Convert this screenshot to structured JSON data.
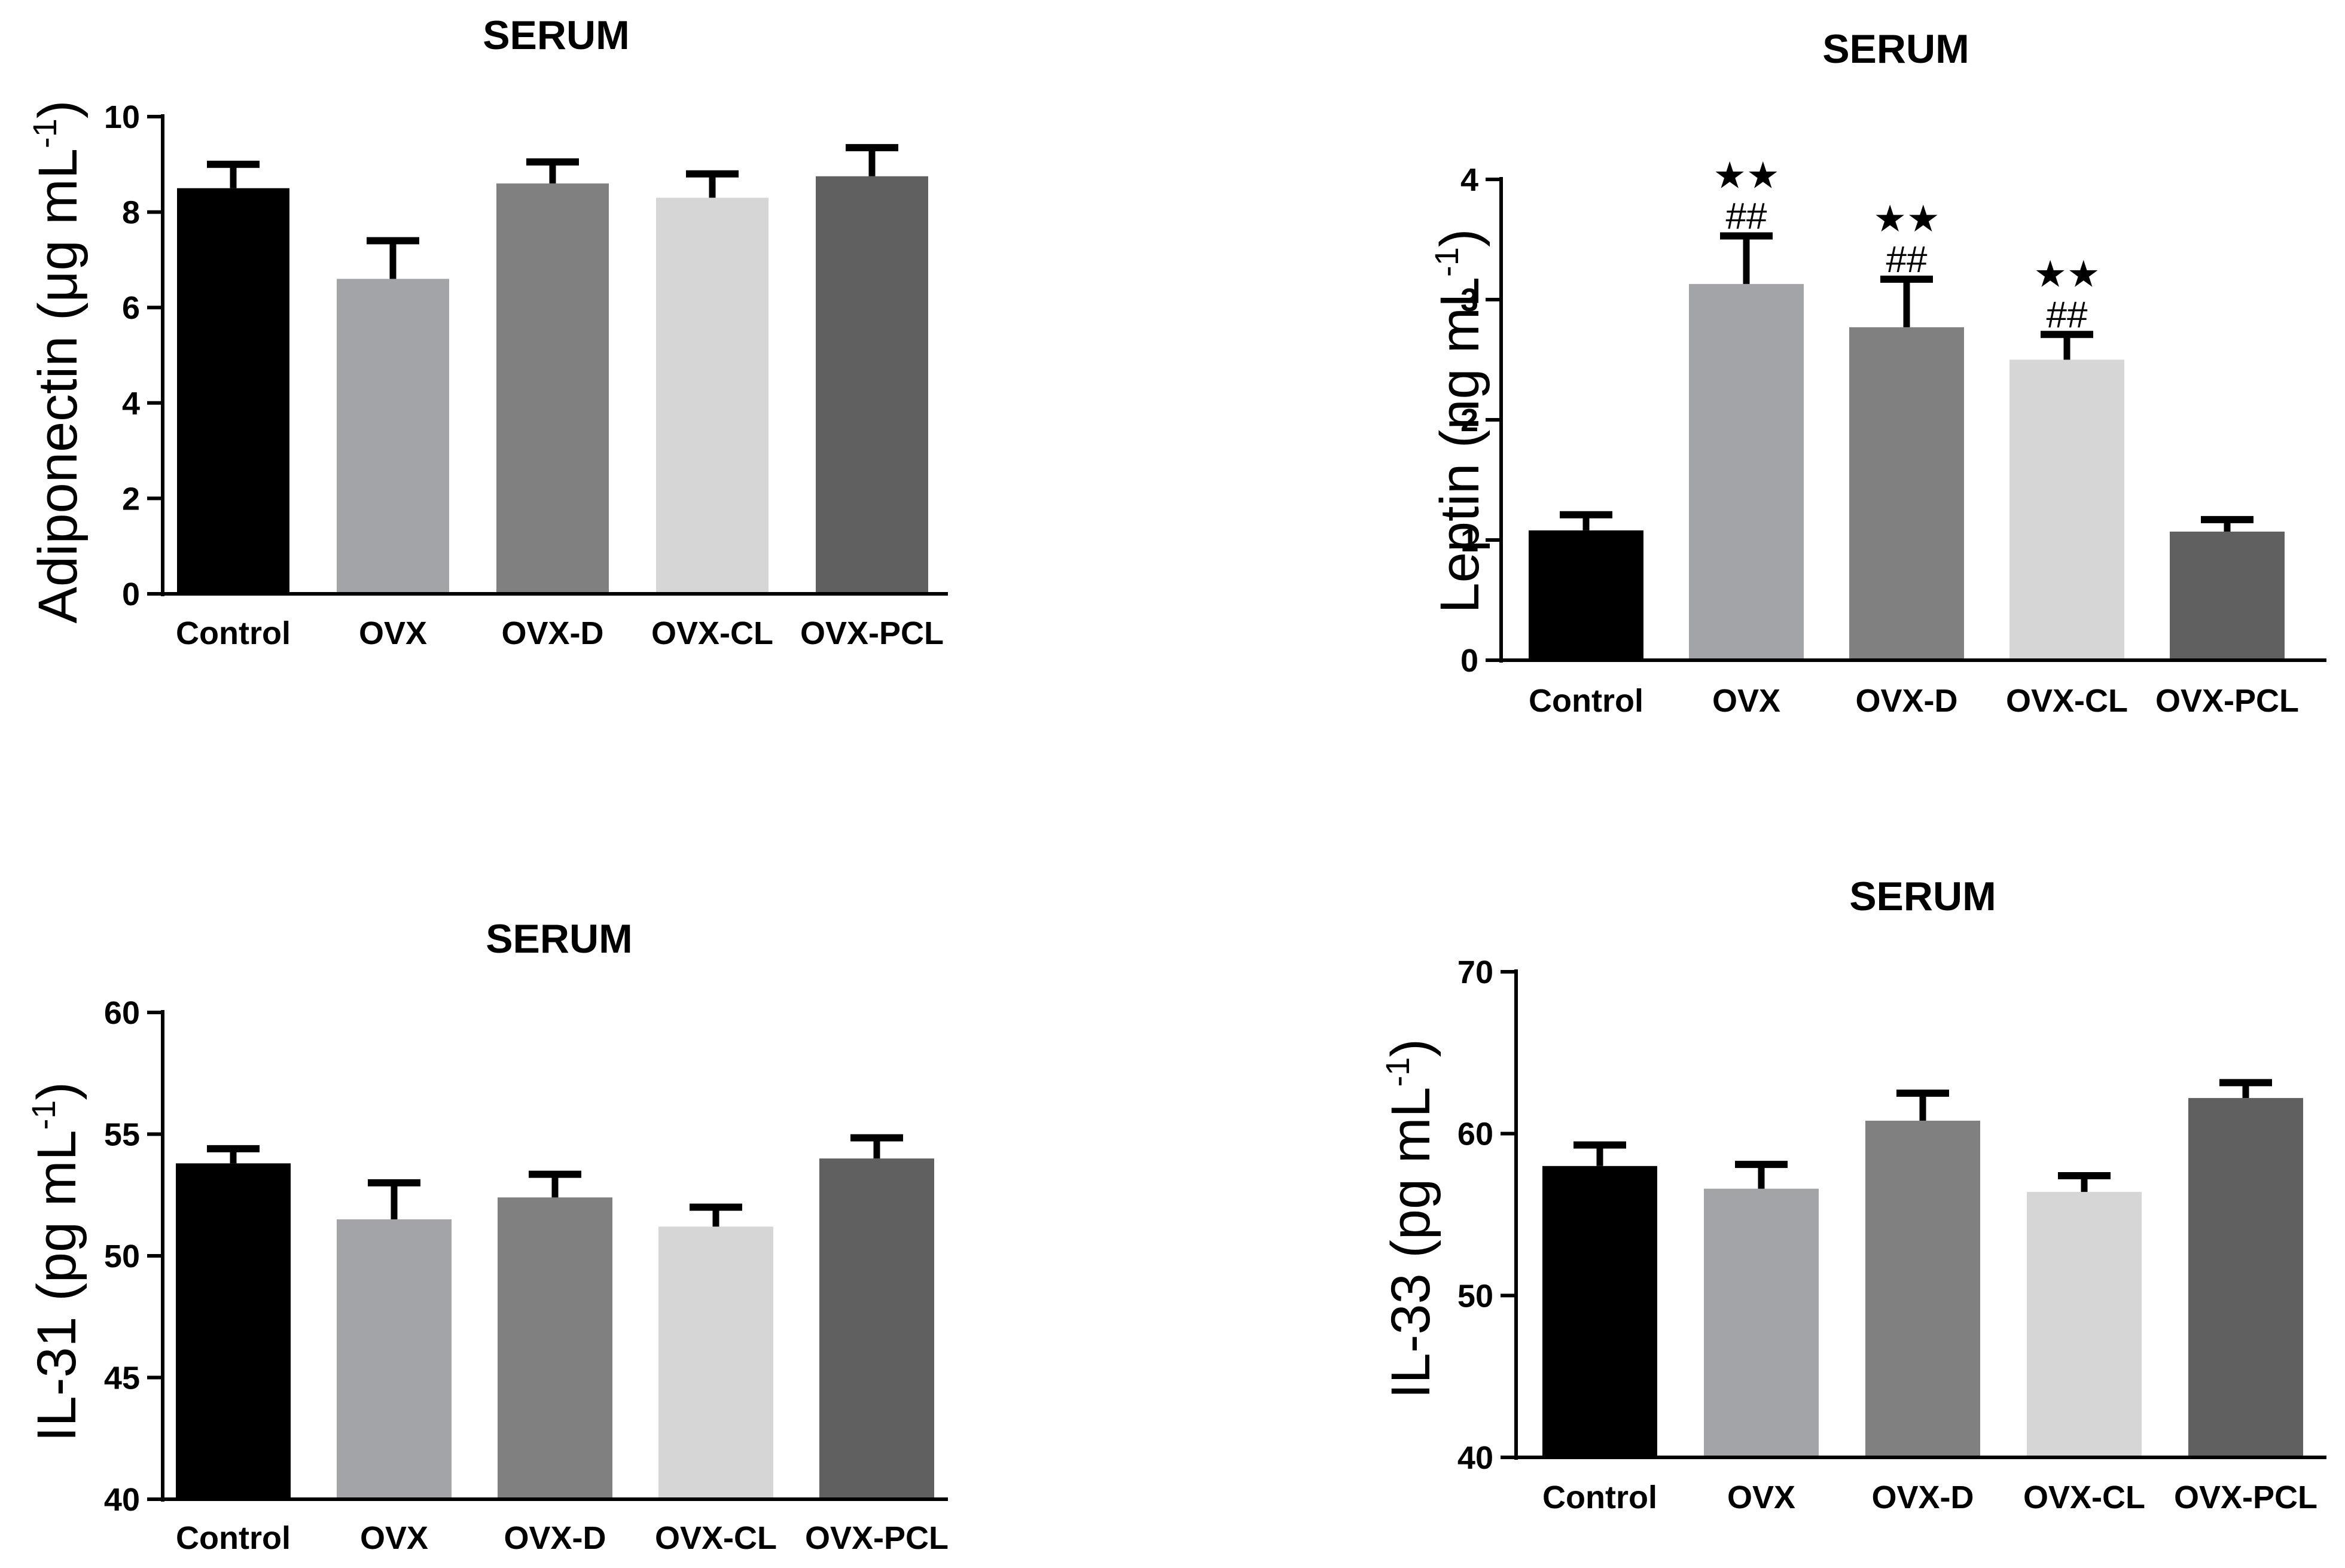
{
  "chart_data": [
    {
      "type": "bar",
      "id": "adiponectin",
      "title": "SERUM",
      "ylabel": "Adiponectin (μg mL",
      "ylabel_superscript": "-1",
      "ylabel_close": ")",
      "xlabel": "",
      "categories": [
        "Control",
        "OVX",
        "OVX-D",
        "OVX-CL",
        "OVX-PCL"
      ],
      "values": [
        8.5,
        6.6,
        8.6,
        8.3,
        8.75
      ],
      "errors": [
        0.5,
        0.8,
        0.45,
        0.5,
        0.6
      ],
      "colors": [
        "#000000",
        "#a3a4a8",
        "#808080",
        "#d6d6d6",
        "#606060"
      ],
      "ylim": [
        0,
        10
      ],
      "yticks": [
        0,
        2,
        4,
        6,
        8,
        10
      ],
      "annotations": [
        "",
        "",
        "",
        "",
        ""
      ],
      "annotations2": [
        "",
        "",
        "",
        "",
        ""
      ]
    },
    {
      "type": "bar",
      "id": "leptin",
      "title": "SERUM",
      "ylabel": "Leptin (ng mL",
      "ylabel_superscript": "-1",
      "ylabel_close": ")",
      "xlabel": "",
      "categories": [
        "Control",
        "OVX",
        "OVX-D",
        "OVX-CL",
        "OVX-PCL"
      ],
      "values": [
        1.08,
        3.13,
        2.77,
        2.5,
        1.07
      ],
      "errors": [
        0.13,
        0.4,
        0.4,
        0.21,
        0.1
      ],
      "colors": [
        "#000000",
        "#a3a4a8",
        "#808080",
        "#d6d6d6",
        "#606060"
      ],
      "ylim": [
        0,
        4
      ],
      "yticks": [
        0,
        1,
        2,
        3,
        4
      ],
      "annotations": [
        "",
        "★★",
        "★★",
        "★★",
        ""
      ],
      "annotations2": [
        "",
        "##",
        "##",
        "##",
        ""
      ]
    },
    {
      "type": "bar",
      "id": "il31",
      "title": "SERUM",
      "ylabel": "IL-31 (pg mL",
      "ylabel_superscript": "-1",
      "ylabel_close": ")",
      "xlabel": "",
      "categories": [
        "Control",
        "OVX",
        "OVX-D",
        "OVX-CL",
        "OVX-PCL"
      ],
      "values": [
        53.8,
        51.5,
        52.4,
        51.2,
        54.0
      ],
      "errors": [
        0.6,
        1.5,
        0.95,
        0.8,
        0.85
      ],
      "colors": [
        "#000000",
        "#a3a4a8",
        "#808080",
        "#d6d6d6",
        "#606060"
      ],
      "ylim": [
        40,
        60
      ],
      "yticks": [
        40,
        45,
        50,
        55,
        60
      ],
      "annotations": [
        "",
        "",
        "",
        "",
        ""
      ],
      "annotations2": [
        "",
        "",
        "",
        "",
        ""
      ]
    },
    {
      "type": "bar",
      "id": "il33",
      "title": "SERUM",
      "ylabel": "IL-33 (pg mL",
      "ylabel_superscript": "-1",
      "ylabel_close": ")",
      "xlabel": "",
      "categories": [
        "Control",
        "OVX",
        "OVX-D",
        "OVX-CL",
        "OVX-PCL"
      ],
      "values": [
        58.0,
        56.6,
        60.8,
        56.4,
        62.2
      ],
      "errors": [
        1.3,
        1.5,
        1.7,
        1.0,
        0.95
      ],
      "colors": [
        "#000000",
        "#a3a4a8",
        "#808080",
        "#d6d6d6",
        "#606060"
      ],
      "ylim": [
        40,
        70
      ],
      "yticks": [
        40,
        50,
        60,
        70
      ],
      "annotations": [
        "",
        "",
        "",
        "",
        ""
      ],
      "annotations2": [
        "",
        "",
        "",
        "",
        ""
      ]
    }
  ]
}
